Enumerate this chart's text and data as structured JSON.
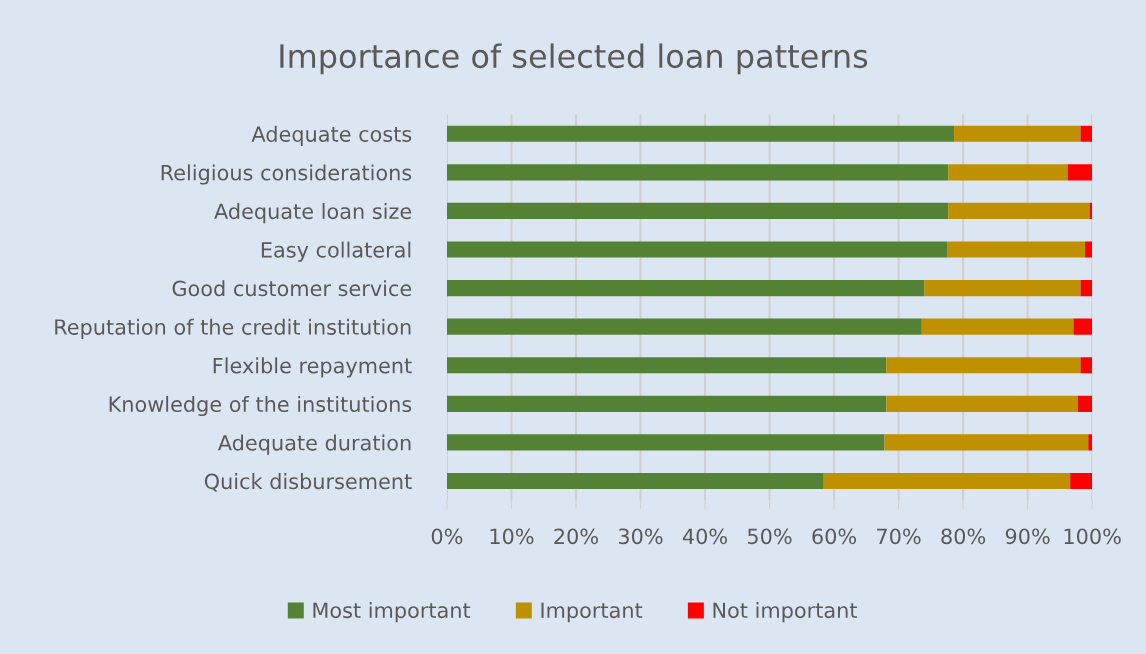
{
  "chart_data": {
    "type": "bar",
    "orientation": "horizontal",
    "stacked": true,
    "title": "Importance of selected loan patterns",
    "categories": [
      "Adequate costs",
      "Religious considerations",
      "Adequate loan size",
      "Easy collateral",
      "Good customer service",
      "Reputation of the credit institution",
      "Flexible repayment",
      "Knowledge of the institutions",
      "Adequate duration",
      "Quick disbursement"
    ],
    "series": [
      {
        "name": "Most important",
        "color": "#548235",
        "values": [
          78.6,
          77.7,
          77.7,
          77.5,
          74.0,
          73.6,
          68.1,
          68.1,
          67.8,
          58.4
        ]
      },
      {
        "name": "Important",
        "color": "#bf9000",
        "values": [
          19.6,
          18.5,
          21.9,
          21.4,
          24.2,
          23.5,
          30.1,
          29.7,
          31.6,
          38.2
        ]
      },
      {
        "name": "Not important",
        "color": "#ff0000",
        "values": [
          1.8,
          3.8,
          0.4,
          1.1,
          1.8,
          2.9,
          1.8,
          2.2,
          0.6,
          3.4
        ]
      }
    ],
    "xlim": [
      0,
      100
    ],
    "xticks": [
      {
        "value": 0,
        "label": "0%"
      },
      {
        "value": 10,
        "label": "10%"
      },
      {
        "value": 20,
        "label": "20%"
      },
      {
        "value": 30,
        "label": "30%"
      },
      {
        "value": 40,
        "label": "40%"
      },
      {
        "value": 50,
        "label": "50%"
      },
      {
        "value": 60,
        "label": "60%"
      },
      {
        "value": 70,
        "label": "70%"
      },
      {
        "value": 80,
        "label": "80%"
      },
      {
        "value": 90,
        "label": "90%"
      },
      {
        "value": 100,
        "label": "100%"
      }
    ],
    "grid": "x",
    "legend": "bottom"
  }
}
